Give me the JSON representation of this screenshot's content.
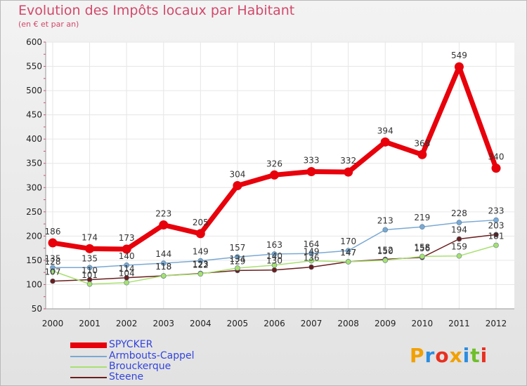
{
  "chart_data": {
    "type": "line",
    "title": "Evolution des Impôts locaux par Habitant",
    "subtitle": "(en € et par an)",
    "categories": [
      "2000",
      "2001",
      "2002",
      "2003",
      "2004",
      "2005",
      "2006",
      "2007",
      "2008",
      "2009",
      "2010",
      "2011",
      "2012"
    ],
    "ylim": [
      50,
      600
    ],
    "yticks": [
      50,
      100,
      150,
      200,
      250,
      300,
      350,
      400,
      450,
      500,
      550,
      600
    ],
    "series": [
      {
        "name": "SPYCKER",
        "color": "#e8000b",
        "values": [
          186,
          174,
          173,
          223,
          205,
          304,
          326,
          333,
          332,
          394,
          368,
          549,
          340
        ],
        "labels": [
          "186",
          "174",
          "173",
          "223",
          "205",
          "304",
          "326",
          "333",
          "332",
          "394",
          "368",
          "549",
          "340"
        ]
      },
      {
        "name": "Armbouts-Cappel",
        "color": "#7aa9d4",
        "values": [
          135,
          135,
          140,
          144,
          149,
          157,
          163,
          164,
          170,
          213,
          219,
          228,
          233
        ],
        "labels": [
          "135",
          "135",
          "140",
          "144",
          "149",
          "157",
          "163",
          "164",
          "170",
          "213",
          "219",
          "228",
          "233"
        ]
      },
      {
        "name": "Brouckerque",
        "color": "#a8e070",
        "values": [
          128,
          101,
          104,
          118,
          122,
          134,
          140,
          149,
          147,
          150,
          158,
          159,
          181
        ],
        "labels": [
          "128",
          "101",
          "104",
          "118",
          "122",
          "134",
          "140",
          "149",
          "147",
          "150",
          "158",
          "159",
          "181"
        ]
      },
      {
        "name": "Steene",
        "color": "#6b1d1d",
        "values": [
          107,
          110,
          114,
          118,
          123,
          129,
          130,
          136,
          147,
          152,
          156,
          194,
          203
        ],
        "labels": [
          "107",
          "110",
          "114",
          "118",
          "123",
          "129",
          "130",
          "136",
          "147",
          "152",
          "156",
          "194",
          "203"
        ]
      }
    ]
  },
  "logo": {
    "text": "Proxiti"
  }
}
